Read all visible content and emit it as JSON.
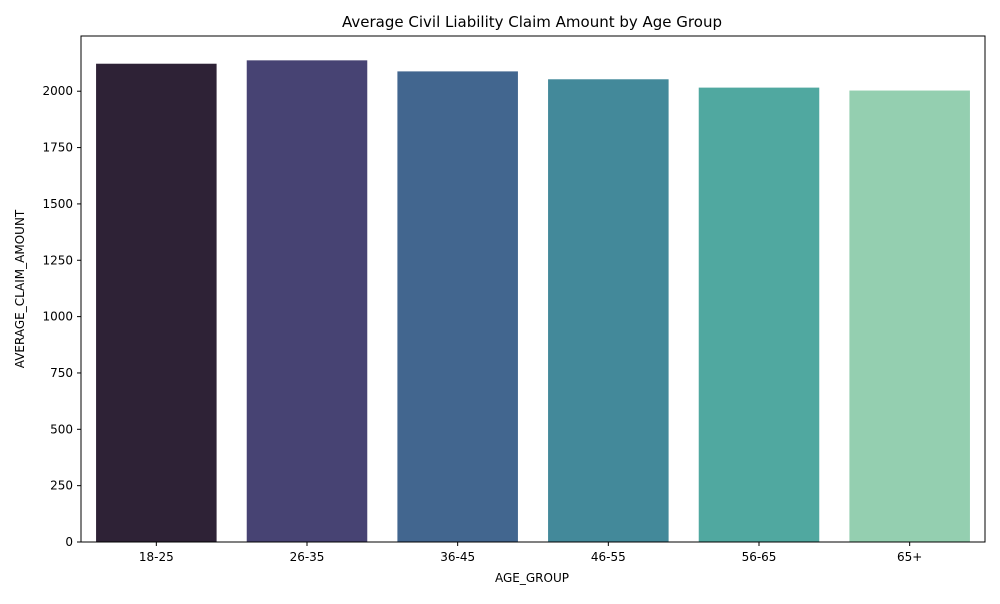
{
  "chart_data": {
    "type": "bar",
    "title": "Average Civil Liability Claim Amount by Age Group",
    "xlabel": "AGE_GROUP",
    "ylabel": "AVERAGE_CLAIM_AMOUNT",
    "categories": [
      "18-25",
      "26-35",
      "36-45",
      "46-55",
      "56-65",
      "65+"
    ],
    "values": [
      2122,
      2137,
      2088,
      2053,
      2016,
      2003
    ],
    "ylim": [
      0,
      2245
    ],
    "yticks": [
      0,
      250,
      500,
      750,
      1000,
      1250,
      1500,
      1750,
      2000
    ],
    "colors": [
      "#2e2236",
      "#474373",
      "#42668f",
      "#43899a",
      "#50a8a0",
      "#94cfb0"
    ],
    "grid": false,
    "legend": "none"
  }
}
